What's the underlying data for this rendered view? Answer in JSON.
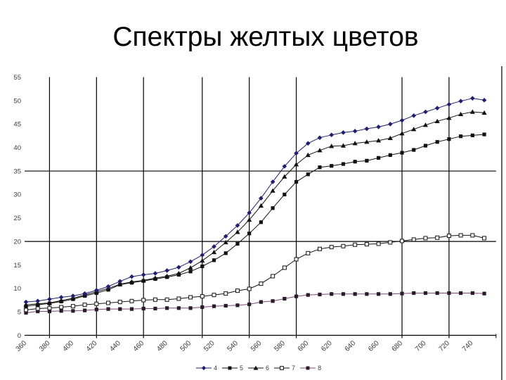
{
  "title": "Спектры желтых цветов",
  "chart_data": {
    "type": "line",
    "title": "Спектры желтых цветов",
    "xlabel": "",
    "ylabel": "",
    "categories": [
      360,
      370,
      380,
      390,
      400,
      410,
      420,
      430,
      440,
      450,
      460,
      470,
      480,
      490,
      500,
      510,
      520,
      530,
      540,
      550,
      560,
      570,
      580,
      590,
      600,
      610,
      620,
      630,
      640,
      650,
      660,
      670,
      680,
      690,
      700,
      710,
      720,
      730,
      740,
      750
    ],
    "x_tick_labels": [
      "360",
      "380",
      "400",
      "420",
      "440",
      "460",
      "480",
      "500",
      "520",
      "540",
      "560",
      "580",
      "600",
      "620",
      "640",
      "660",
      "680",
      "700",
      "720",
      "740"
    ],
    "y_ticks": [
      0,
      5,
      10,
      15,
      20,
      25,
      30,
      35,
      40,
      45,
      50,
      55
    ],
    "ylim": [
      0,
      55
    ],
    "xlim": [
      360,
      760
    ],
    "grid": {
      "horizontal_at": [
        20,
        35
      ],
      "vertical_at": [
        380,
        420,
        460,
        510,
        550,
        590,
        680,
        720
      ]
    },
    "legend_position": "bottom",
    "series": [
      {
        "name": "4",
        "marker": "diamond",
        "color": "#1f1f6e",
        "line_color": "#1f1f6e",
        "values": [
          7.1,
          7.3,
          7.7,
          8.1,
          8.4,
          8.9,
          9.6,
          10.4,
          11.5,
          12.5,
          12.9,
          13.2,
          13.8,
          14.5,
          15.7,
          17.1,
          18.9,
          21.1,
          23.4,
          26.1,
          29.2,
          32.7,
          36.0,
          38.8,
          40.9,
          42.1,
          42.7,
          43.2,
          43.5,
          44.0,
          44.4,
          45.0,
          45.8,
          46.8,
          47.6,
          48.4,
          49.2,
          49.9,
          50.5,
          50.1
        ]
      },
      {
        "name": "5",
        "marker": "square",
        "color": "#111111",
        "line_color": "#111111",
        "values": [
          6.2,
          6.5,
          6.8,
          7.2,
          7.7,
          8.4,
          9.0,
          9.7,
          10.8,
          11.2,
          11.6,
          12.0,
          12.4,
          12.9,
          13.6,
          14.7,
          16.0,
          17.5,
          19.5,
          21.7,
          24.1,
          27.1,
          30.0,
          32.7,
          34.3,
          35.8,
          36.1,
          36.5,
          37.0,
          37.2,
          37.8,
          38.4,
          38.9,
          39.5,
          40.4,
          41.2,
          41.8,
          42.4,
          42.6,
          42.8
        ]
      },
      {
        "name": "6",
        "marker": "triangle",
        "color": "#111111",
        "line_color": "#111111",
        "values": [
          6.5,
          6.7,
          6.9,
          7.4,
          7.9,
          8.6,
          9.3,
          10.0,
          10.9,
          11.4,
          11.7,
          12.2,
          12.6,
          13.2,
          14.4,
          15.9,
          17.7,
          19.8,
          22.0,
          24.6,
          27.6,
          30.8,
          33.8,
          36.4,
          38.4,
          39.4,
          40.3,
          40.4,
          40.9,
          41.2,
          41.5,
          42.0,
          43.0,
          43.9,
          44.8,
          45.6,
          46.3,
          47.1,
          47.6,
          47.4
        ]
      },
      {
        "name": "7",
        "marker": "open-square",
        "color": "#111111",
        "line_color": "#111111",
        "values": [
          5.4,
          5.7,
          5.8,
          6.0,
          6.2,
          6.5,
          6.7,
          6.9,
          7.1,
          7.3,
          7.5,
          7.6,
          7.6,
          7.8,
          8.1,
          8.3,
          8.6,
          8.9,
          9.5,
          9.9,
          11.0,
          12.6,
          14.4,
          16.2,
          17.5,
          18.4,
          18.8,
          19.0,
          19.3,
          19.4,
          19.5,
          19.8,
          20.1,
          20.4,
          20.7,
          20.8,
          21.2,
          21.3,
          21.3,
          20.7
        ]
      },
      {
        "name": "8",
        "marker": "square",
        "color": "#2a1a2e",
        "line_color": "#7a4a6e",
        "values": [
          4.8,
          5.1,
          5.1,
          5.2,
          5.2,
          5.3,
          5.5,
          5.6,
          5.6,
          5.6,
          5.7,
          5.7,
          5.8,
          5.8,
          5.8,
          6.0,
          6.2,
          6.3,
          6.4,
          6.6,
          7.1,
          7.3,
          7.8,
          8.3,
          8.6,
          8.7,
          8.8,
          8.8,
          8.8,
          8.8,
          8.8,
          8.8,
          8.9,
          9.0,
          9.0,
          9.0,
          9.0,
          9.0,
          9.0,
          8.9
        ]
      }
    ]
  }
}
